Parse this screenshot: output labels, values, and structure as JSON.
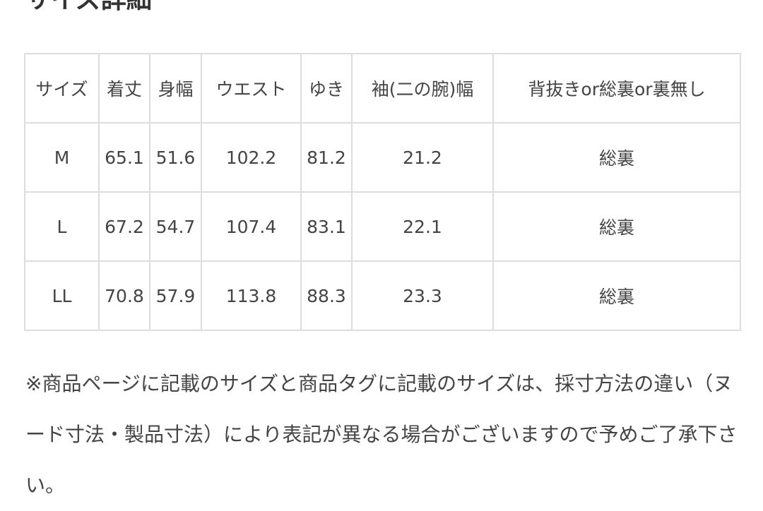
{
  "heading": "サイズ詳細",
  "table": {
    "headers": [
      "サイズ",
      "着丈",
      "身幅",
      "ウエスト",
      "ゆき",
      "袖(二の腕)幅",
      "背抜きor総裏or裏無し"
    ],
    "rows": [
      [
        "M",
        "65.1",
        "51.6",
        "102.2",
        "81.2",
        "21.2",
        "総裏"
      ],
      [
        "L",
        "67.2",
        "54.7",
        "107.4",
        "83.1",
        "22.1",
        "総裏"
      ],
      [
        "LL",
        "70.8",
        "57.9",
        "113.8",
        "88.3",
        "23.3",
        "総裏"
      ]
    ]
  },
  "note": "※商品ページに記載のサイズと商品タグに記載のサイズは、採寸方法の違い（ヌード寸法・製品寸法）により表記が異なる場合がございますので予めご了承下さい。"
}
